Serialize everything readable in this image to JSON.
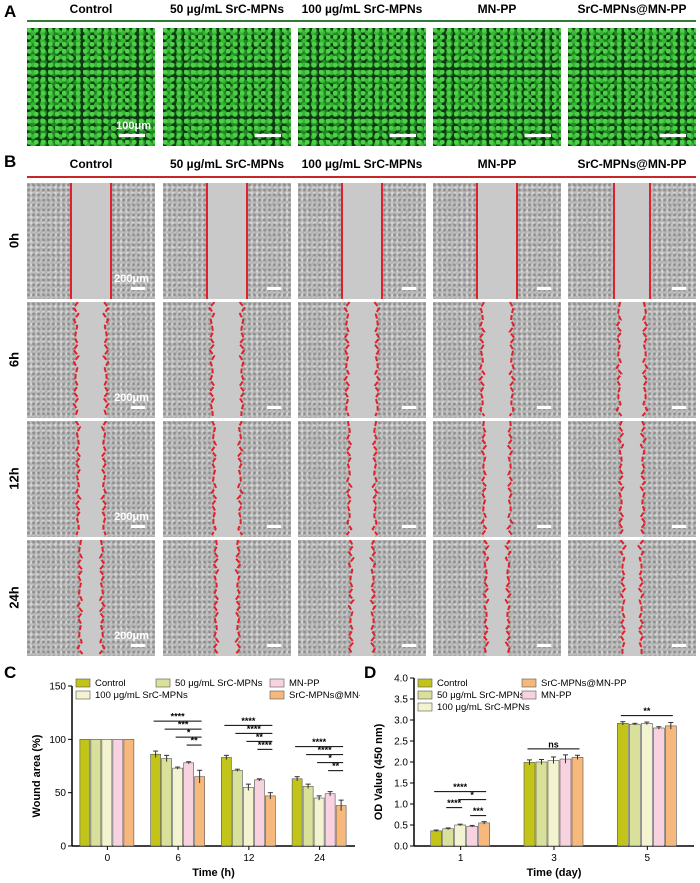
{
  "panels": {
    "a": "A",
    "b": "B",
    "c": "C",
    "d": "D"
  },
  "groups": [
    "Control",
    "50 µg/mL SrC-MPNs",
    "100 µg/mL SrC-MPNs",
    "MN-PP",
    "SrC-MPNs@MN-PP"
  ],
  "scale_a": "100μm",
  "scale_b": "200μm",
  "times_b": [
    "0h",
    "6h",
    "12h",
    "24h"
  ],
  "colors": {
    "sep_a": "#2e7d32",
    "sep_b": "#c62828",
    "wound_line": "#e0202a",
    "series": [
      "#c2c41a",
      "#d9e09a",
      "#f3f3cf",
      "#f9d2e0",
      "#f7b97b"
    ]
  },
  "chart_data": [
    {
      "type": "bar",
      "panel": "C",
      "categories": [
        "0",
        "6",
        "12",
        "24"
      ],
      "series": [
        {
          "name": "Control",
          "values": [
            100,
            86,
            83,
            63
          ],
          "errors": [
            0,
            3,
            2,
            2
          ]
        },
        {
          "name": "50 μg/mL SrC-MPNs",
          "values": [
            100,
            82,
            71,
            56
          ],
          "errors": [
            0,
            3,
            1,
            2
          ]
        },
        {
          "name": "100 μg/mL SrC-MPNs",
          "values": [
            100,
            73,
            55,
            45
          ],
          "errors": [
            0,
            1,
            3,
            2
          ]
        },
        {
          "name": "MN-PP",
          "values": [
            100,
            78,
            62,
            49
          ],
          "errors": [
            0,
            1,
            1,
            2
          ]
        },
        {
          "name": "SrC-MPNs@MN-PP",
          "values": [
            100,
            65,
            47,
            38
          ],
          "errors": [
            0,
            6,
            3,
            5
          ]
        }
      ],
      "xlabel": "Time (h)",
      "ylabel": "Wound area (%)",
      "ylim": [
        0,
        150
      ],
      "yticks": [
        0,
        50,
        100,
        150
      ],
      "legend_order": [
        0,
        1,
        3,
        2,
        4
      ],
      "significance": [
        {
          "group": 1,
          "from": 0,
          "to": 4,
          "label": "****"
        },
        {
          "group": 1,
          "from": 1,
          "to": 4,
          "label": "***"
        },
        {
          "group": 1,
          "from": 2,
          "to": 4,
          "label": "*"
        },
        {
          "group": 1,
          "from": 3,
          "to": 4,
          "label": "**"
        },
        {
          "group": 2,
          "from": 0,
          "to": 4,
          "label": "****"
        },
        {
          "group": 2,
          "from": 1,
          "to": 4,
          "label": "****"
        },
        {
          "group": 2,
          "from": 2,
          "to": 4,
          "label": "**"
        },
        {
          "group": 2,
          "from": 3,
          "to": 4,
          "label": "****"
        },
        {
          "group": 3,
          "from": 0,
          "to": 4,
          "label": "****"
        },
        {
          "group": 3,
          "from": 1,
          "to": 4,
          "label": "****"
        },
        {
          "group": 3,
          "from": 2,
          "to": 4,
          "label": "*"
        },
        {
          "group": 3,
          "from": 3,
          "to": 4,
          "label": "**"
        }
      ]
    },
    {
      "type": "bar",
      "panel": "D",
      "categories": [
        "1",
        "3",
        "5"
      ],
      "series": [
        {
          "name": "Control",
          "values": [
            0.36,
            1.99,
            2.92
          ],
          "errors": [
            0.02,
            0.06,
            0.04
          ]
        },
        {
          "name": "50 μg/mL SrC-MPNs",
          "values": [
            0.41,
            2.0,
            2.9
          ],
          "errors": [
            0.02,
            0.06,
            0.02
          ]
        },
        {
          "name": "100 μg/mL SrC-MPNs",
          "values": [
            0.5,
            2.04,
            2.92
          ],
          "errors": [
            0.02,
            0.08,
            0.03
          ]
        },
        {
          "name": "MN-PP",
          "values": [
            0.47,
            2.07,
            2.81
          ],
          "errors": [
            0.02,
            0.1,
            0.03
          ]
        },
        {
          "name": "SrC-MPNs@MN-PP",
          "values": [
            0.55,
            2.11,
            2.86
          ],
          "errors": [
            0.03,
            0.05,
            0.08
          ]
        }
      ],
      "xlabel": "Time (day)",
      "ylabel": "OD Value (450 nm)",
      "ylim": [
        0,
        4.0
      ],
      "yticks": [
        "0.0",
        "0.5",
        "1.0",
        "1.5",
        "2.0",
        "2.5",
        "3.0",
        "3.5",
        "4.0"
      ],
      "legend_order": [
        0,
        4,
        1,
        3,
        2
      ],
      "significance": [
        {
          "group": 0,
          "from": 0,
          "to": 4,
          "label": "****"
        },
        {
          "group": 0,
          "from": 2,
          "to": 4,
          "label": "*"
        },
        {
          "group": 0,
          "from": 1,
          "to": 2,
          "label": "****"
        },
        {
          "group": 0,
          "from": 3,
          "to": 4,
          "label": "***"
        },
        {
          "group": 1,
          "from": 0,
          "to": 4,
          "label": "ns"
        },
        {
          "group": 2,
          "from": 0,
          "to": 4,
          "label": "**"
        }
      ]
    }
  ]
}
